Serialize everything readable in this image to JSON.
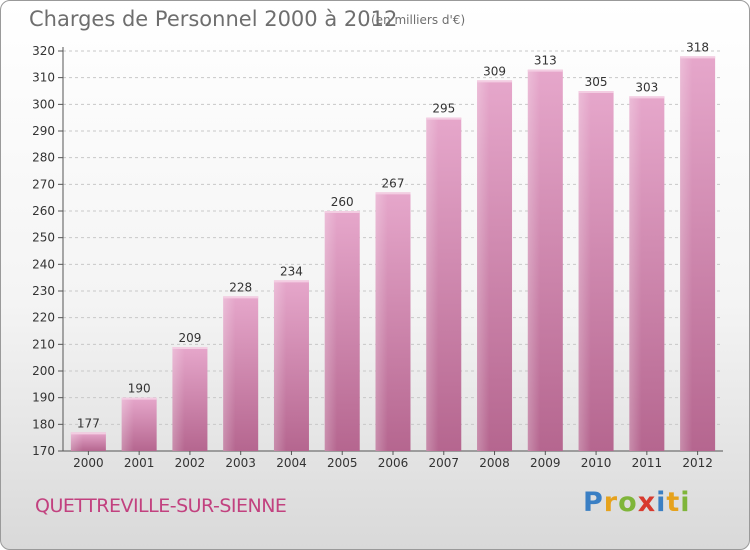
{
  "header": {
    "title": "Charges de Personnel 2000 à 2012",
    "subtitle": "(en milliers d'€)"
  },
  "footer": {
    "commune": "QUETTREVILLE-SUR-SIENNE",
    "logo": "Proxiti"
  },
  "chart_data": {
    "type": "bar",
    "categories": [
      "2000",
      "2001",
      "2002",
      "2003",
      "2004",
      "2005",
      "2006",
      "2007",
      "2008",
      "2009",
      "2010",
      "2011",
      "2012"
    ],
    "values": [
      177,
      190,
      209,
      228,
      234,
      260,
      267,
      295,
      309,
      313,
      305,
      303,
      318
    ],
    "ylim": [
      170,
      320
    ],
    "yticks": [
      170,
      180,
      190,
      200,
      210,
      220,
      230,
      240,
      250,
      260,
      270,
      280,
      290,
      300,
      310,
      320
    ],
    "grid": true,
    "bar_color": "#d58fb8"
  }
}
